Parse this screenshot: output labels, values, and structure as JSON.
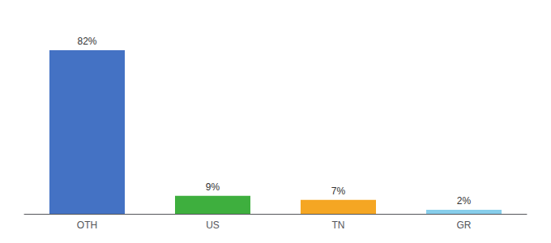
{
  "chart_data": {
    "type": "bar",
    "categories": [
      "OTH",
      "US",
      "TN",
      "GR"
    ],
    "values": [
      82,
      9,
      7,
      2
    ],
    "value_labels": [
      "82%",
      "9%",
      "7%",
      "2%"
    ],
    "data_labels": true,
    "colors": [
      "#4472C4",
      "#3EAF3E",
      "#F5A623",
      "#87CEEB"
    ],
    "ylim": [
      0,
      95
    ],
    "tick_labels": "x",
    "grid": false
  }
}
